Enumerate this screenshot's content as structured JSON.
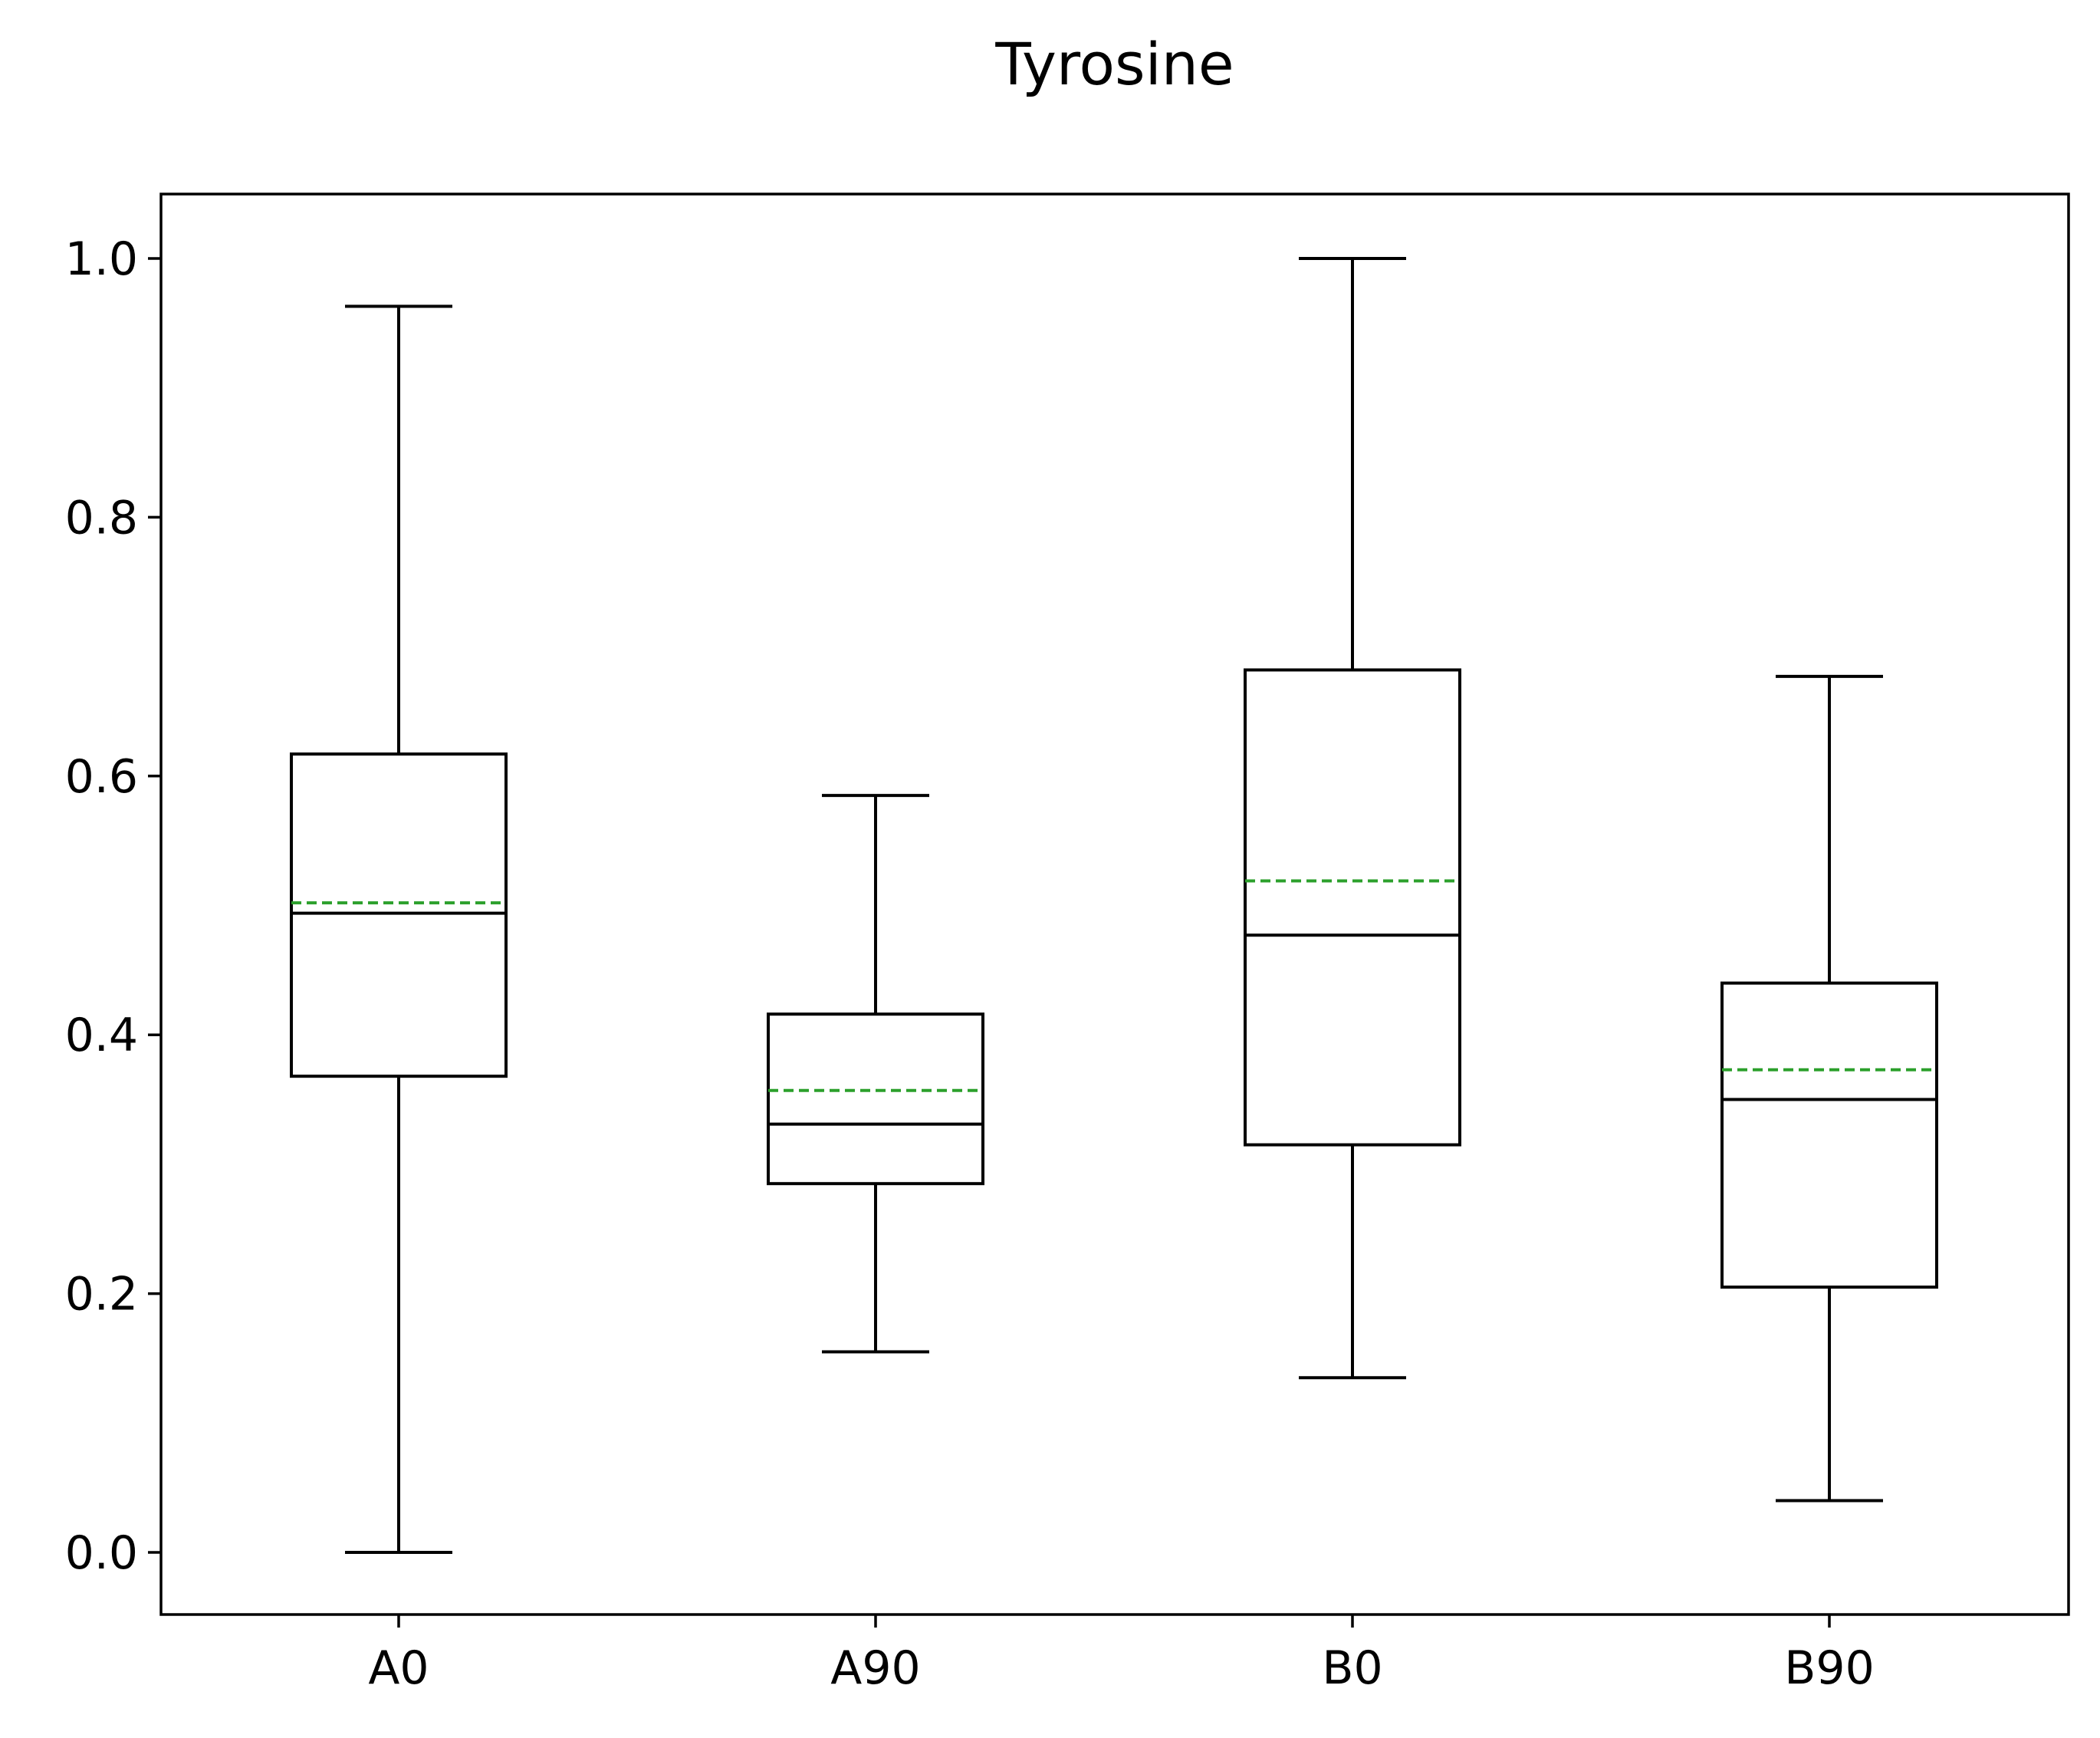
{
  "chart_data": {
    "type": "box",
    "title": "Tyrosine",
    "xlabel": "",
    "ylabel": "",
    "ylim": [
      -0.049,
      1.05
    ],
    "yticks": [
      {
        "value": 0.0,
        "label": "0.0"
      },
      {
        "value": 0.2,
        "label": "0.2"
      },
      {
        "value": 0.4,
        "label": "0.4"
      },
      {
        "value": 0.6,
        "label": "0.6"
      },
      {
        "value": 0.8,
        "label": "0.8"
      },
      {
        "value": 1.0,
        "label": "1.0"
      }
    ],
    "categories": [
      "A0",
      "A90",
      "B0",
      "B90"
    ],
    "boxes": [
      {
        "category": "A0",
        "whisker_low": 0.0,
        "q1": 0.368,
        "median": 0.494,
        "mean": 0.502,
        "q3": 0.617,
        "whisker_high": 0.963
      },
      {
        "category": "A90",
        "whisker_low": 0.155,
        "q1": 0.285,
        "median": 0.331,
        "mean": 0.357,
        "q3": 0.416,
        "whisker_high": 0.585
      },
      {
        "category": "B0",
        "whisker_low": 0.135,
        "q1": 0.315,
        "median": 0.477,
        "mean": 0.519,
        "q3": 0.682,
        "whisker_high": 1.0
      },
      {
        "category": "B90",
        "whisker_low": 0.04,
        "q1": 0.205,
        "median": 0.35,
        "mean": 0.373,
        "q3": 0.44,
        "whisker_high": 0.677
      }
    ],
    "grid": false,
    "legend": "none",
    "colors": {
      "box": "#000000",
      "median": "#000000",
      "mean": "#2ca02c"
    }
  }
}
